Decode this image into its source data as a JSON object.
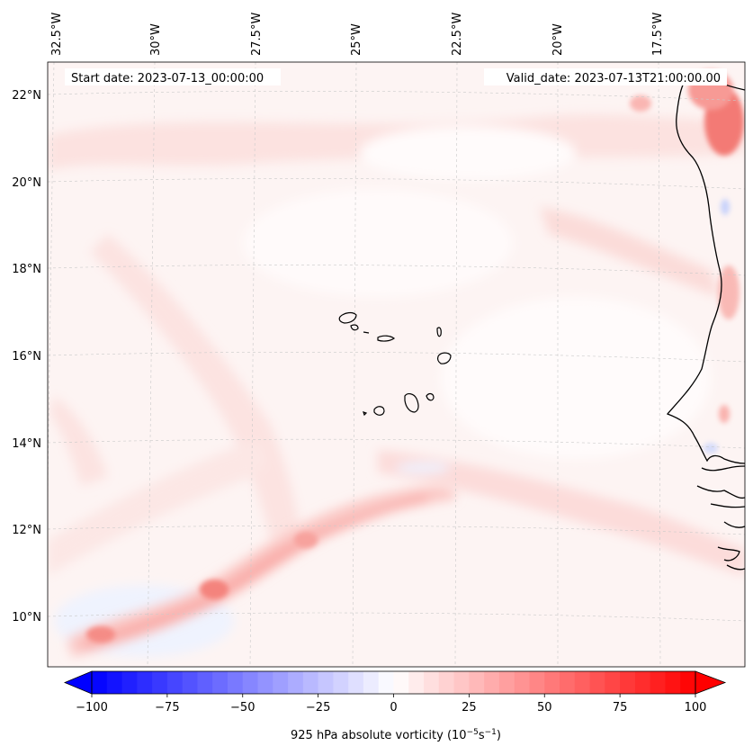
{
  "map": {
    "start_date_text": "Start date: 2023-07-13_00:00:00",
    "valid_date_text": "Valid_date: 2023-07-13T21:00:00.00",
    "longitude_labels": [
      "32.5°W",
      "30°W",
      "27.5°W",
      "25°W",
      "22.5°W",
      "20°W",
      "17.5°W"
    ],
    "latitude_labels": [
      "22°N",
      "20°N",
      "18°N",
      "16°N",
      "14°N",
      "12°N",
      "10°N"
    ]
  },
  "colorbar": {
    "label": "925 hPa absolute vorticity (10",
    "label_exp1": "−5",
    "label_mid": "s",
    "label_exp2": "−1",
    "label_end": ")",
    "ticks": [
      "−100",
      "−75",
      "−50",
      "−25",
      "0",
      "25",
      "50",
      "75",
      "100"
    ],
    "tick_values": [
      -100,
      -75,
      -50,
      -25,
      0,
      25,
      50,
      75,
      100
    ],
    "min": -100,
    "max": 100,
    "step": 5,
    "colors": {
      "negative": "#0000ff",
      "neutral": "#ffffff",
      "positive": "#ff0000"
    }
  }
}
